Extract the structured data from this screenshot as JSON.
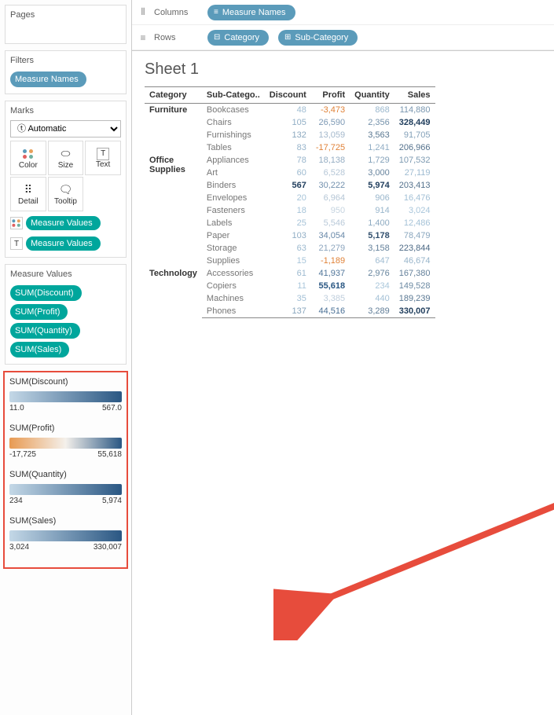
{
  "colors": {
    "pill_blue": "#5b9bba",
    "pill_teal": "#00a69c",
    "arrow": "#e74c3c",
    "highlight_border": "#e74c3c",
    "neg": "#e08238",
    "discount_grad_start": "#c4d8e7",
    "discount_grad_end": "#2a5783",
    "profit_grad_start": "#e89a52",
    "profit_grad_mid": "#f4f0eb",
    "profit_grad_end": "#2a5783",
    "quantity_grad_start": "#c4d8e7",
    "quantity_grad_end": "#2a5783",
    "sales_grad_start": "#c4d8e7",
    "sales_grad_end": "#2a5783"
  },
  "pages": {
    "title": "Pages"
  },
  "filters": {
    "title": "Filters",
    "items": [
      {
        "label": "Measure Names",
        "type": "dimension"
      }
    ]
  },
  "marks": {
    "title": "Marks",
    "dropdown": "Automatic",
    "cells": [
      "Color",
      "Size",
      "Text",
      "Detail",
      "Tooltip"
    ],
    "assigned": [
      {
        "icon": "color",
        "label": "Measure Values"
      },
      {
        "icon": "text",
        "label": "Measure Values"
      }
    ]
  },
  "measure_values": {
    "title": "Measure Values",
    "items": [
      {
        "label": "SUM(Discount)"
      },
      {
        "label": "SUM(Profit)"
      },
      {
        "label": "SUM(Quantity)"
      },
      {
        "label": "SUM(Sales)"
      }
    ]
  },
  "legends": [
    {
      "label": "SUM(Discount)",
      "min": "11.0",
      "max": "567.0",
      "grad": [
        "#c4d8e7",
        "#2a5783"
      ]
    },
    {
      "label": "SUM(Profit)",
      "min": "-17,725",
      "max": "55,618",
      "grad": [
        "#e89a52",
        "#f4f0eb",
        "#2a5783"
      ]
    },
    {
      "label": "SUM(Quantity)",
      "min": "234",
      "max": "5,974",
      "grad": [
        "#c4d8e7",
        "#2a5783"
      ]
    },
    {
      "label": "SUM(Sales)",
      "min": "3,024",
      "max": "330,007",
      "grad": [
        "#c4d8e7",
        "#2a5783"
      ]
    }
  ],
  "columns": {
    "label": "Columns",
    "pills": [
      {
        "label": "Measure Names",
        "icon": "≡"
      }
    ]
  },
  "rows": {
    "label": "Rows",
    "pills": [
      {
        "label": "Category",
        "icon": "⊟"
      },
      {
        "label": "Sub-Category",
        "icon": "⊞"
      }
    ]
  },
  "sheet": {
    "title": "Sheet 1",
    "headers": [
      "Category",
      "Sub-Catego..",
      "Discount",
      "Profit",
      "Quantity",
      "Sales"
    ],
    "groups": [
      {
        "category": "Furniture",
        "rows": [
          {
            "sub": "Bookcases",
            "discount": "48",
            "profit": "-3,473",
            "quantity": "868",
            "sales": "114,880"
          },
          {
            "sub": "Chairs",
            "discount": "105",
            "profit": "26,590",
            "quantity": "2,356",
            "sales": "328,449"
          },
          {
            "sub": "Furnishings",
            "discount": "132",
            "profit": "13,059",
            "quantity": "3,563",
            "sales": "91,705"
          },
          {
            "sub": "Tables",
            "discount": "83",
            "profit": "-17,725",
            "quantity": "1,241",
            "sales": "206,966"
          }
        ]
      },
      {
        "category": "Office Supplies",
        "rows": [
          {
            "sub": "Appliances",
            "discount": "78",
            "profit": "18,138",
            "quantity": "1,729",
            "sales": "107,532"
          },
          {
            "sub": "Art",
            "discount": "60",
            "profit": "6,528",
            "quantity": "3,000",
            "sales": "27,119"
          },
          {
            "sub": "Binders",
            "discount": "567",
            "profit": "30,222",
            "quantity": "5,974",
            "sales": "203,413"
          },
          {
            "sub": "Envelopes",
            "discount": "20",
            "profit": "6,964",
            "quantity": "906",
            "sales": "16,476"
          },
          {
            "sub": "Fasteners",
            "discount": "18",
            "profit": "950",
            "quantity": "914",
            "sales": "3,024"
          },
          {
            "sub": "Labels",
            "discount": "25",
            "profit": "5,546",
            "quantity": "1,400",
            "sales": "12,486"
          },
          {
            "sub": "Paper",
            "discount": "103",
            "profit": "34,054",
            "quantity": "5,178",
            "sales": "78,479"
          },
          {
            "sub": "Storage",
            "discount": "63",
            "profit": "21,279",
            "quantity": "3,158",
            "sales": "223,844"
          },
          {
            "sub": "Supplies",
            "discount": "15",
            "profit": "-1,189",
            "quantity": "647",
            "sales": "46,674"
          }
        ]
      },
      {
        "category": "Technology",
        "rows": [
          {
            "sub": "Accessories",
            "discount": "61",
            "profit": "41,937",
            "quantity": "2,976",
            "sales": "167,380"
          },
          {
            "sub": "Copiers",
            "discount": "11",
            "profit": "55,618",
            "quantity": "234",
            "sales": "149,528"
          },
          {
            "sub": "Machines",
            "discount": "35",
            "profit": "3,385",
            "quantity": "440",
            "sales": "189,239"
          },
          {
            "sub": "Phones",
            "discount": "137",
            "profit": "44,516",
            "quantity": "3,289",
            "sales": "330,007"
          }
        ]
      }
    ],
    "ranges": {
      "discount": {
        "min": 11,
        "max": 567
      },
      "profit": {
        "min": -17725,
        "max": 55618
      },
      "quantity": {
        "min": 234,
        "max": 5974
      },
      "sales": {
        "min": 3024,
        "max": 330007
      }
    }
  }
}
